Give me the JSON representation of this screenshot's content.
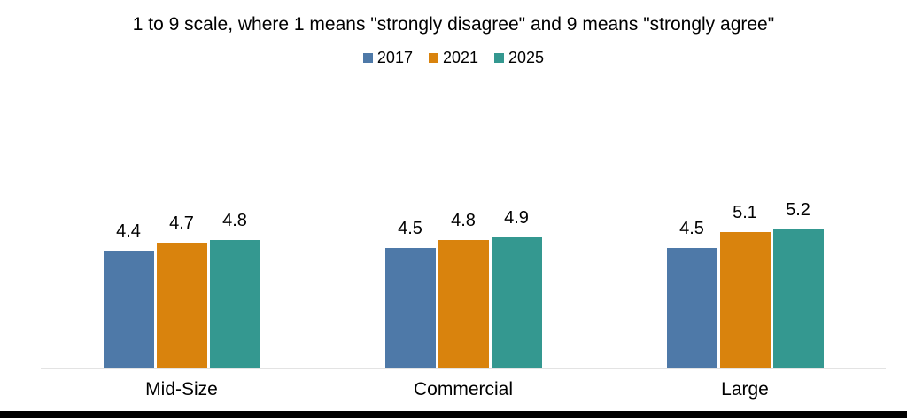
{
  "chart_data": {
    "type": "bar",
    "title": "1 to 9 scale, where 1 means \"strongly disagree\" and 9 means \"strongly agree\"",
    "categories": [
      "Mid-Size",
      "Commercial",
      "Large"
    ],
    "series": [
      {
        "name": "2017",
        "color": "#4e79a8",
        "values": [
          4.4,
          4.5,
          4.5
        ]
      },
      {
        "name": "2021",
        "color": "#d9830d",
        "values": [
          4.7,
          4.8,
          5.1
        ]
      },
      {
        "name": "2025",
        "color": "#349890",
        "values": [
          4.8,
          4.9,
          5.2
        ]
      }
    ],
    "ylim": [
      0,
      9
    ],
    "grid": false,
    "legend_position": "top",
    "value_labels": true,
    "value_label_format": "0.0",
    "baseline_color": "#e3e3e3"
  },
  "footer": {
    "bar_color": "#000000"
  }
}
